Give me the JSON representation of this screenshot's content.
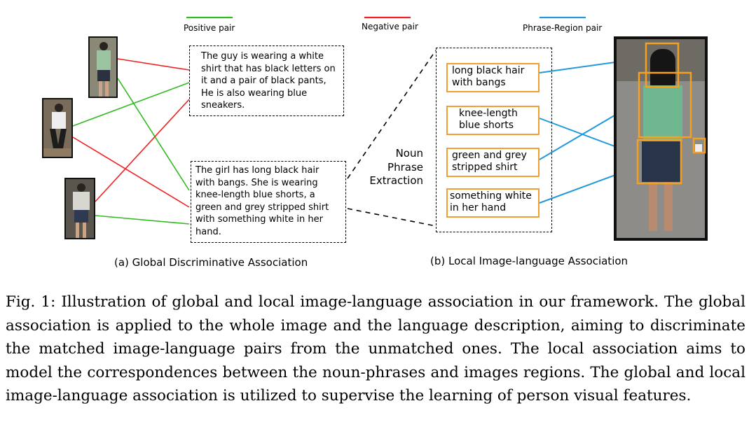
{
  "legend": {
    "positive": {
      "label": "Positive pair",
      "color": "#33bb22"
    },
    "negative": {
      "label": "Negative pair",
      "color": "#ee2222"
    },
    "phrase_region": {
      "label": "Phrase-Region pair",
      "color": "#2299dd"
    }
  },
  "global": {
    "desc1": "The guy is wearing a white shirt that has black letters on it and a pair of black pants, He is also wearing blue sneakers.",
    "desc2": "The girl has long black hair with bangs. She is wearing knee-length blue shorts, a green and grey stripped shirt with something white in her hand.",
    "subcaption": "(a)  Global Discriminative Association"
  },
  "local": {
    "npe_label": [
      "Noun",
      "Phrase",
      "Extraction"
    ],
    "phrases": [
      "long black hair with bangs",
      "knee-length blue shorts",
      "green and grey stripped shirt",
      "something white in her hand"
    ],
    "subcaption": "(b)  Local Image-language Association",
    "region_color": "#f5a020"
  },
  "caption": "Fig. 1: Illustration of global and local image-language association in our framework. The global association is applied to the whole image and the language description, aiming to discriminate the matched image-language pairs from the unmatched ones. The local association aims to model the correspondences between the noun-phrases and images regions. The global and local image-language association is utilized to supervise the learning of person visual features."
}
